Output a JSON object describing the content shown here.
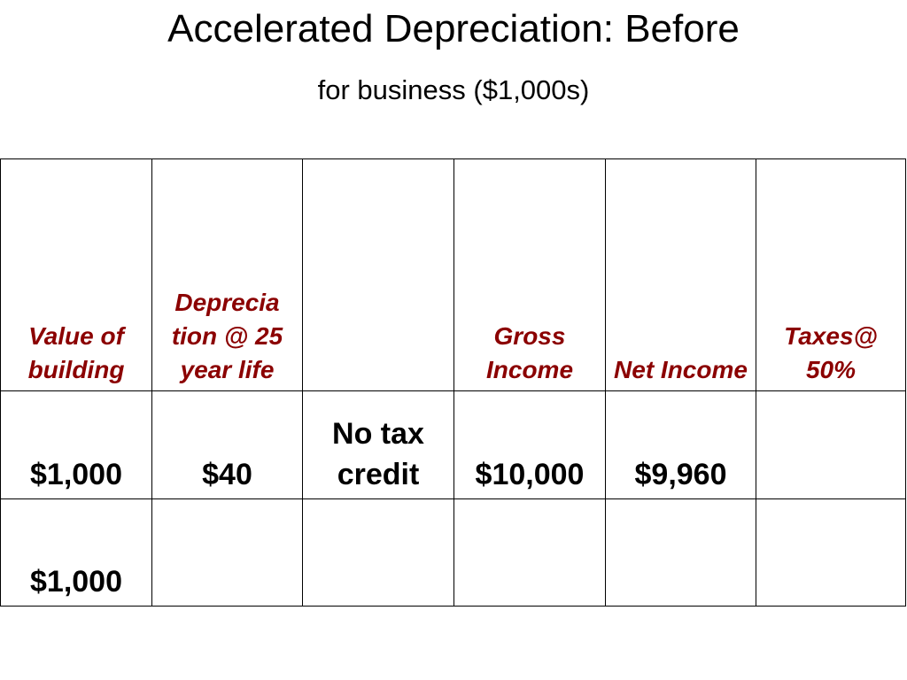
{
  "slide": {
    "title": "Accelerated Depreciation: Before",
    "subtitle": "for business ($1,000s)"
  },
  "colors": {
    "header_text": "#8b0000",
    "body_text": "#000000",
    "border": "#000000"
  },
  "table": {
    "headers": [
      "Value of building",
      "Deprecia tion @ 25 year life",
      "",
      "Gross Income",
      "Net Income",
      "Taxes@ 50%"
    ],
    "rows": [
      [
        "$1,000",
        "$40",
        "No tax credit",
        "$10,000",
        "$9,960",
        ""
      ],
      [
        "$1,000",
        "",
        "",
        "",
        "",
        ""
      ]
    ]
  }
}
